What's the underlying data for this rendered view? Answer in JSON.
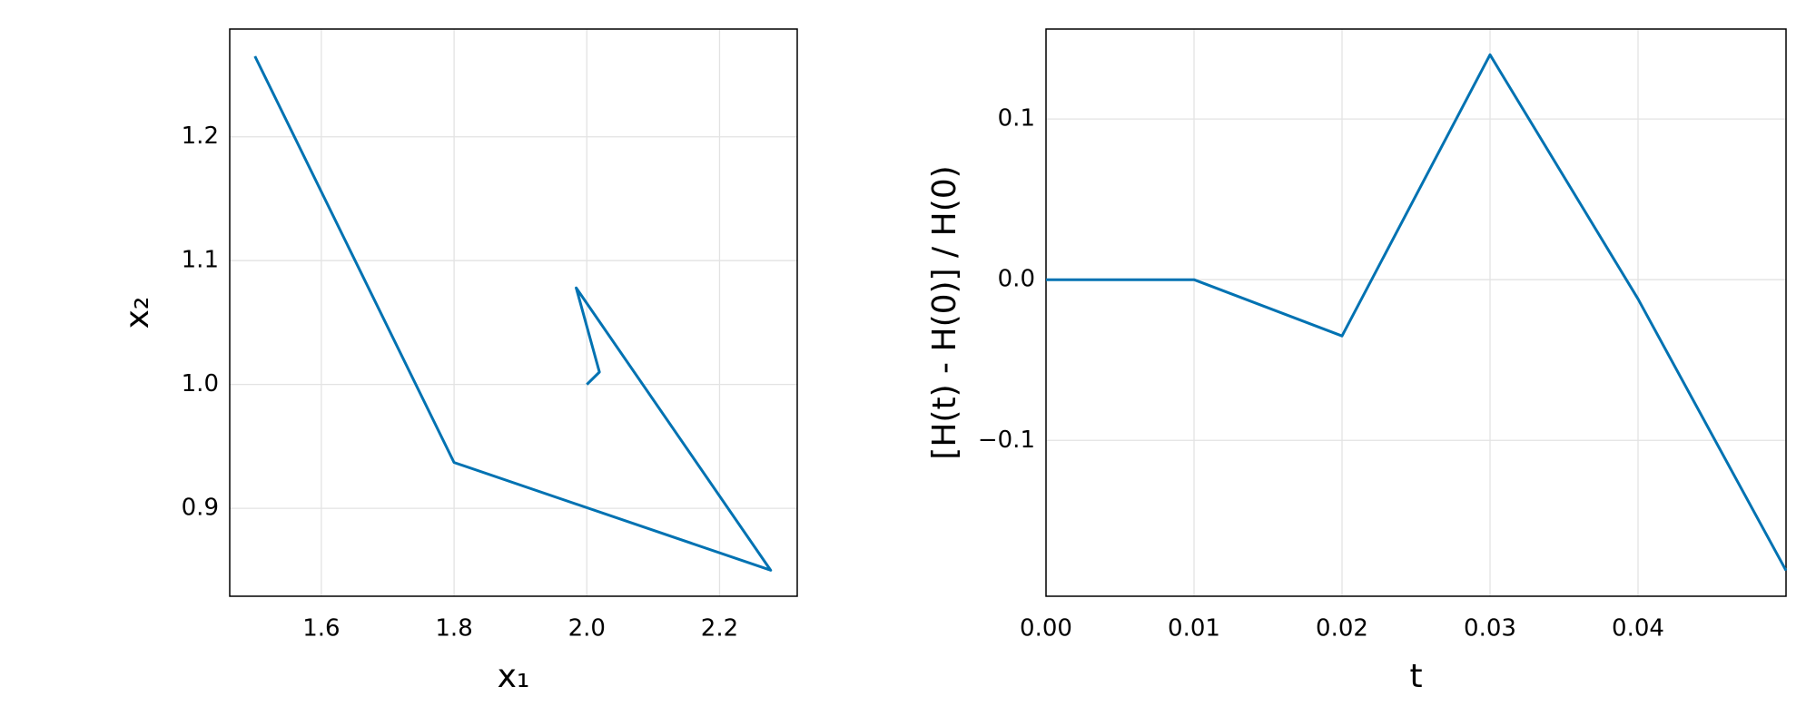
{
  "chart_data": [
    {
      "type": "line",
      "x_label": "x₁",
      "y_label": "x₂",
      "series": [
        {
          "color": "#0072b2",
          "x": [
            2.0,
            2.019,
            1.984,
            2.277,
            1.8,
            1.5
          ],
          "values": [
            1.0,
            1.01,
            1.078,
            0.85,
            0.937,
            1.265
          ]
        }
      ],
      "xlim": [
        1.462,
        2.317
      ],
      "ylim": [
        0.829,
        1.287
      ],
      "xticks": [
        1.6,
        1.8,
        {
          "value": 2,
          "label": "2.0"
        },
        2.2
      ],
      "yticks": [
        0.9,
        {
          "value": 1,
          "label": "1.0"
        },
        1.1,
        1.2
      ],
      "grid": true
    },
    {
      "type": "line",
      "x_label": "t",
      "y_label": "[H(t) - H(0)] / H(0)",
      "series": [
        {
          "color": "#0072b2",
          "x": [
            0,
            0.01,
            0.02,
            0.03,
            0.04,
            0.05
          ],
          "values": [
            0,
            0,
            -0.035,
            0.14,
            -0.012,
            -0.181
          ]
        }
      ],
      "xlim": [
        0,
        0.05
      ],
      "ylim": [
        -0.197,
        0.156
      ],
      "xticks": [
        {
          "value": 0,
          "label": "0.00"
        },
        0.01,
        0.02,
        0.03,
        0.04
      ],
      "yticks": [
        {
          "value": -0.1,
          "label": "−0.1"
        },
        {
          "value": 0,
          "label": "0.0"
        },
        0.1
      ],
      "grid": true
    }
  ]
}
